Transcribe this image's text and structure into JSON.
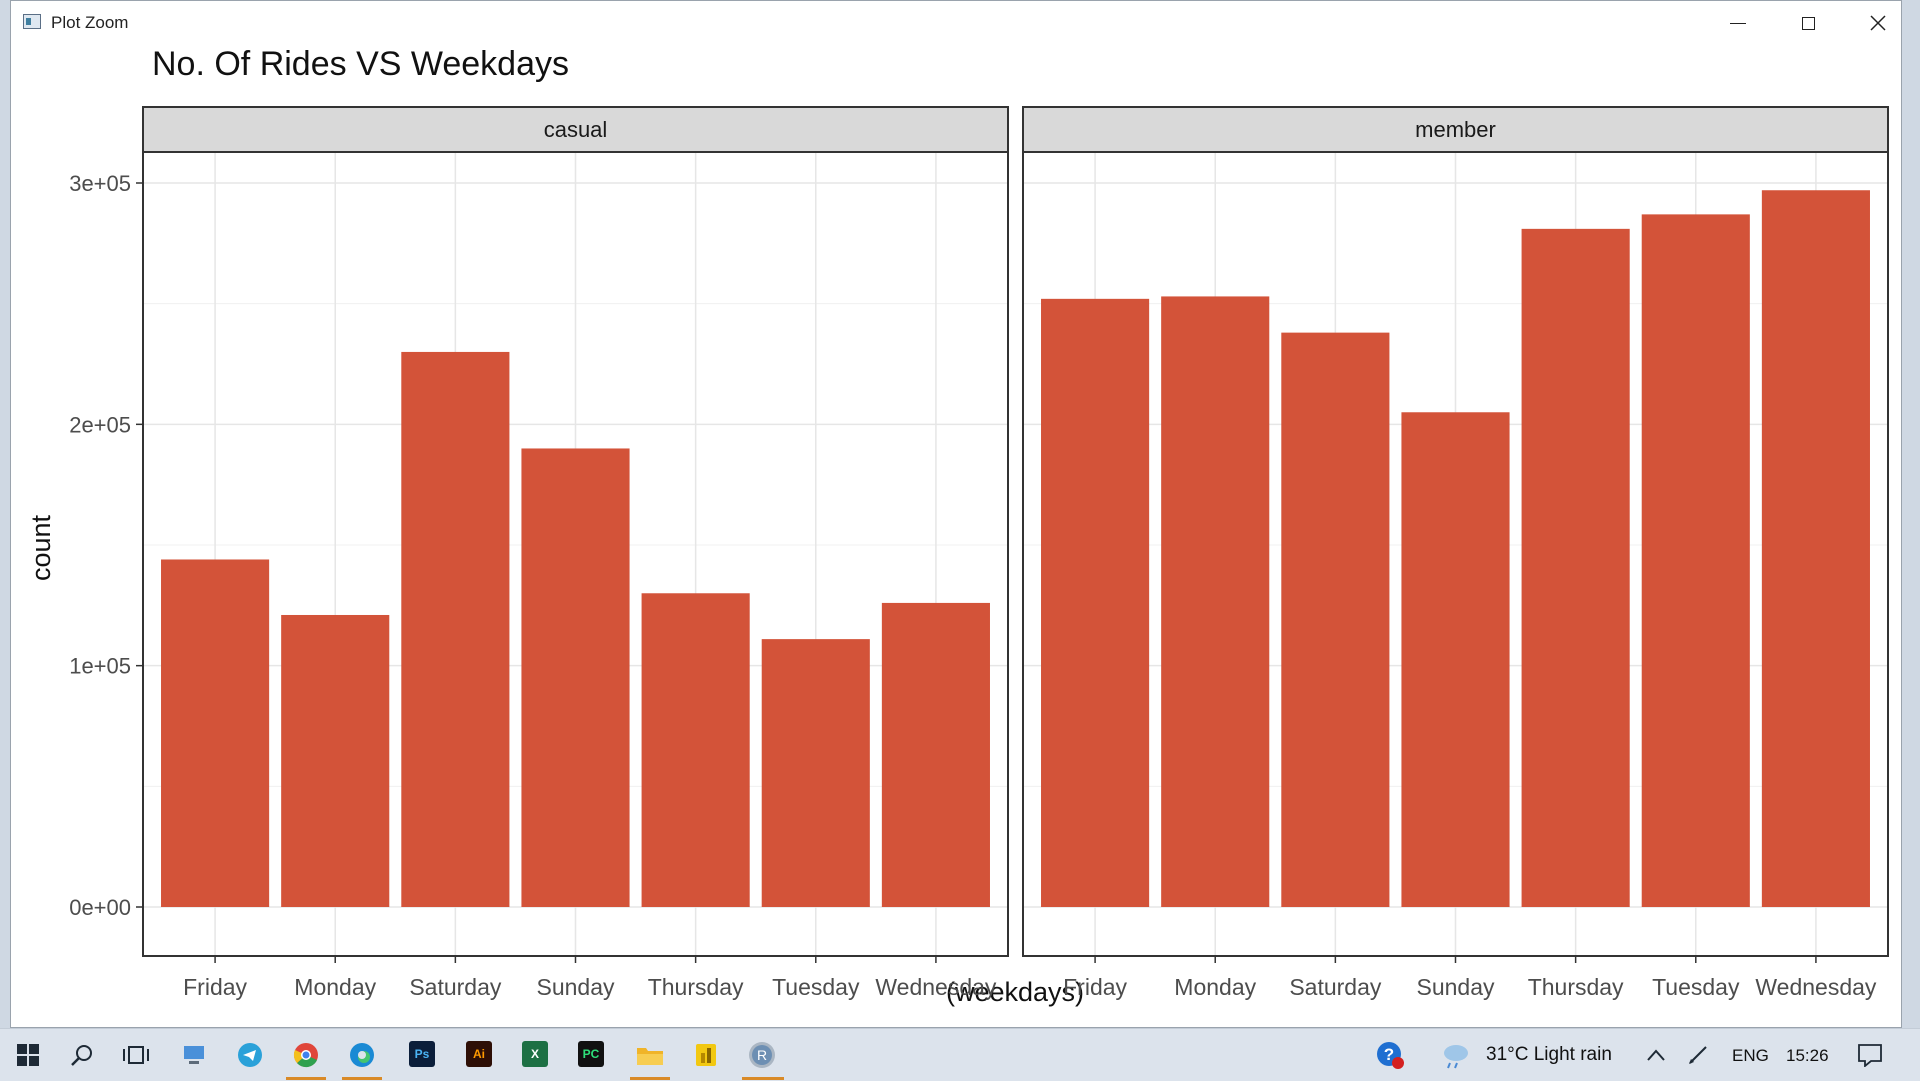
{
  "window": {
    "title": "Plot Zoom",
    "minimize_icon": "minimize-icon",
    "maximize_icon": "maximize-icon",
    "close_icon": "close-icon"
  },
  "chart_data": {
    "type": "bar",
    "title": "No. Of Rides VS Weekdays",
    "xlabel": "(weekdays)",
    "ylabel": "count",
    "ylim": [
      0,
      310000
    ],
    "yticks": [
      0,
      100000,
      200000,
      300000
    ],
    "ytick_labels": [
      "0e+00",
      "1e+05",
      "2e+05",
      "3e+05"
    ],
    "grid": true,
    "bar_color": "#d35339",
    "categories": [
      "Friday",
      "Monday",
      "Saturday",
      "Sunday",
      "Thursday",
      "Tuesday",
      "Wednesday"
    ],
    "panels": [
      {
        "name": "casual",
        "values": [
          144000,
          121000,
          230000,
          190000,
          130000,
          111000,
          126000
        ]
      },
      {
        "name": "member",
        "values": [
          252000,
          253000,
          238000,
          205000,
          281000,
          287000,
          297000
        ]
      }
    ]
  },
  "taskbar": {
    "icons": [
      "windows-start-icon",
      "search-icon",
      "task-view-icon",
      "computer-icon",
      "telegram-icon",
      "chrome-icon",
      "edge-icon",
      "photoshop-icon",
      "illustrator-icon",
      "excel-icon",
      "pycharm-icon",
      "file-explorer-icon",
      "power-bi-icon",
      "r-icon"
    ],
    "ps_label": "Ps",
    "ai_label": "Ai",
    "excel_label": "X",
    "pycharm_label": "PC",
    "r_label": "R",
    "weather": "31°C  Light rain",
    "language": "ENG",
    "time": "15:26"
  }
}
